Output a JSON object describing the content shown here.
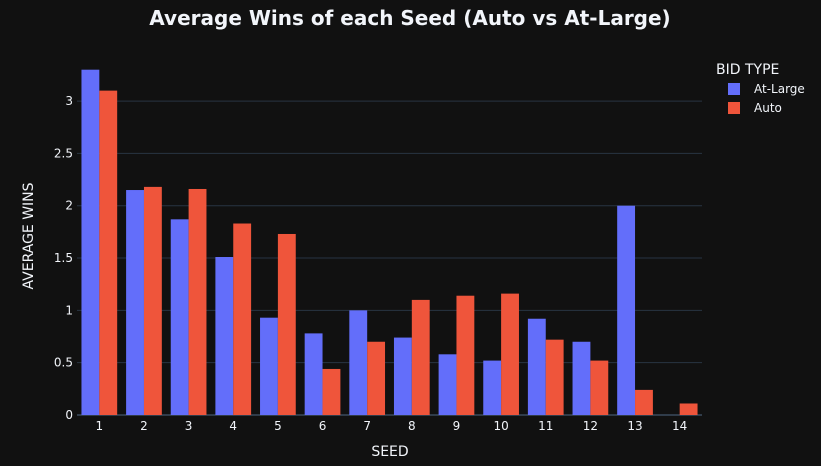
{
  "chart_data": {
    "type": "bar",
    "title": "Average Wins of each Seed (Auto vs At-Large)",
    "xlabel": "SEED",
    "ylabel": "AVERAGE WINS",
    "categories": [
      "1",
      "2",
      "3",
      "4",
      "5",
      "6",
      "7",
      "8",
      "9",
      "10",
      "11",
      "12",
      "13",
      "14"
    ],
    "ylim": [
      0,
      3.45
    ],
    "yticks": [
      0,
      0.5,
      1,
      1.5,
      2,
      2.5,
      3
    ],
    "ytick_labels": [
      "0",
      "0.5",
      "1",
      "1.5",
      "2",
      "2.5",
      "3"
    ],
    "grid": true,
    "legend": {
      "title": "BID TYPE",
      "placement": "top-right"
    },
    "series": [
      {
        "name": "At-Large",
        "color": "#636efa",
        "values": [
          3.3,
          2.15,
          1.87,
          1.51,
          0.93,
          0.78,
          1.0,
          0.74,
          0.58,
          0.52,
          0.92,
          0.7,
          2.0,
          null
        ]
      },
      {
        "name": "Auto",
        "color": "#ef553b",
        "values": [
          3.1,
          2.18,
          2.16,
          1.83,
          1.73,
          0.44,
          0.7,
          1.1,
          1.14,
          1.16,
          0.72,
          0.52,
          0.24,
          0.11
        ]
      }
    ]
  }
}
